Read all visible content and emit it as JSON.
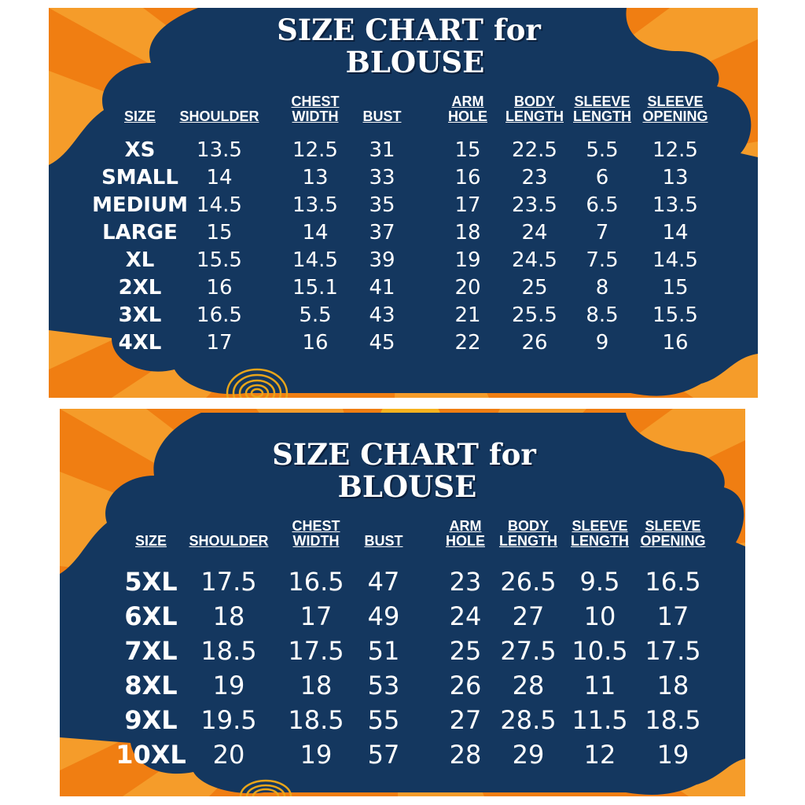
{
  "colors": {
    "navy": "#14375f",
    "orange": "#f07e12",
    "orange_light": "#f7a733",
    "text": "#ffffff",
    "emblem": "#e8a51a"
  },
  "chart1": {
    "title_line1": "SIZE CHART for",
    "title_line2": "BLOUSE",
    "headers": [
      [
        "SIZE"
      ],
      [
        "SHOULDER"
      ],
      [
        "CHEST",
        "WIDTH"
      ],
      [
        "BUST"
      ],
      [
        "ARM",
        "HOLE"
      ],
      [
        "BODY",
        "LENGTH"
      ],
      [
        "SLEEVE",
        "LENGTH"
      ],
      [
        "SLEEVE",
        "OPENING"
      ]
    ],
    "rows": [
      [
        "XS",
        "13.5",
        "12.5",
        "31",
        "15",
        "22.5",
        "5.5",
        "12.5"
      ],
      [
        "SMALL",
        "14",
        "13",
        "33",
        "16",
        "23",
        "6",
        "13"
      ],
      [
        "MEDIUM",
        "14.5",
        "13.5",
        "35",
        "17",
        "23.5",
        "6.5",
        "13.5"
      ],
      [
        "LARGE",
        "15",
        "14",
        "37",
        "18",
        "24",
        "7",
        "14"
      ],
      [
        "XL",
        "15.5",
        "14.5",
        "39",
        "19",
        "24.5",
        "7.5",
        "14.5"
      ],
      [
        "2XL",
        "16",
        "15.1",
        "41",
        "20",
        "25",
        "8",
        "15"
      ],
      [
        "3XL",
        "16.5",
        "5.5",
        "43",
        "21",
        "25.5",
        "8.5",
        "15.5"
      ],
      [
        "4XL",
        "17",
        "16",
        "45",
        "22",
        "26",
        "9",
        "16"
      ]
    ]
  },
  "chart2": {
    "title_line1": "SIZE CHART for",
    "title_line2": "BLOUSE",
    "headers": [
      [
        "SIZE"
      ],
      [
        "SHOULDER"
      ],
      [
        "CHEST",
        "WIDTH"
      ],
      [
        "BUST"
      ],
      [
        "ARM",
        "HOLE"
      ],
      [
        "BODY",
        "LENGTH"
      ],
      [
        "SLEEVE",
        "LENGTH"
      ],
      [
        "SLEEVE",
        "OPENING"
      ]
    ],
    "rows": [
      [
        "5XL",
        "17.5",
        "16.5",
        "47",
        "23",
        "26.5",
        "9.5",
        "16.5"
      ],
      [
        "6XL",
        "18",
        "17",
        "49",
        "24",
        "27",
        "10",
        "17"
      ],
      [
        "7XL",
        "18.5",
        "17.5",
        "51",
        "25",
        "27.5",
        "10.5",
        "17.5"
      ],
      [
        "8XL",
        "19",
        "18",
        "53",
        "26",
        "28",
        "11",
        "18"
      ],
      [
        "9XL",
        "19.5",
        "18.5",
        "55",
        "27",
        "28.5",
        "11.5",
        "18.5"
      ],
      [
        "10XL",
        "20",
        "19",
        "57",
        "28",
        "29",
        "12",
        "19"
      ]
    ]
  }
}
